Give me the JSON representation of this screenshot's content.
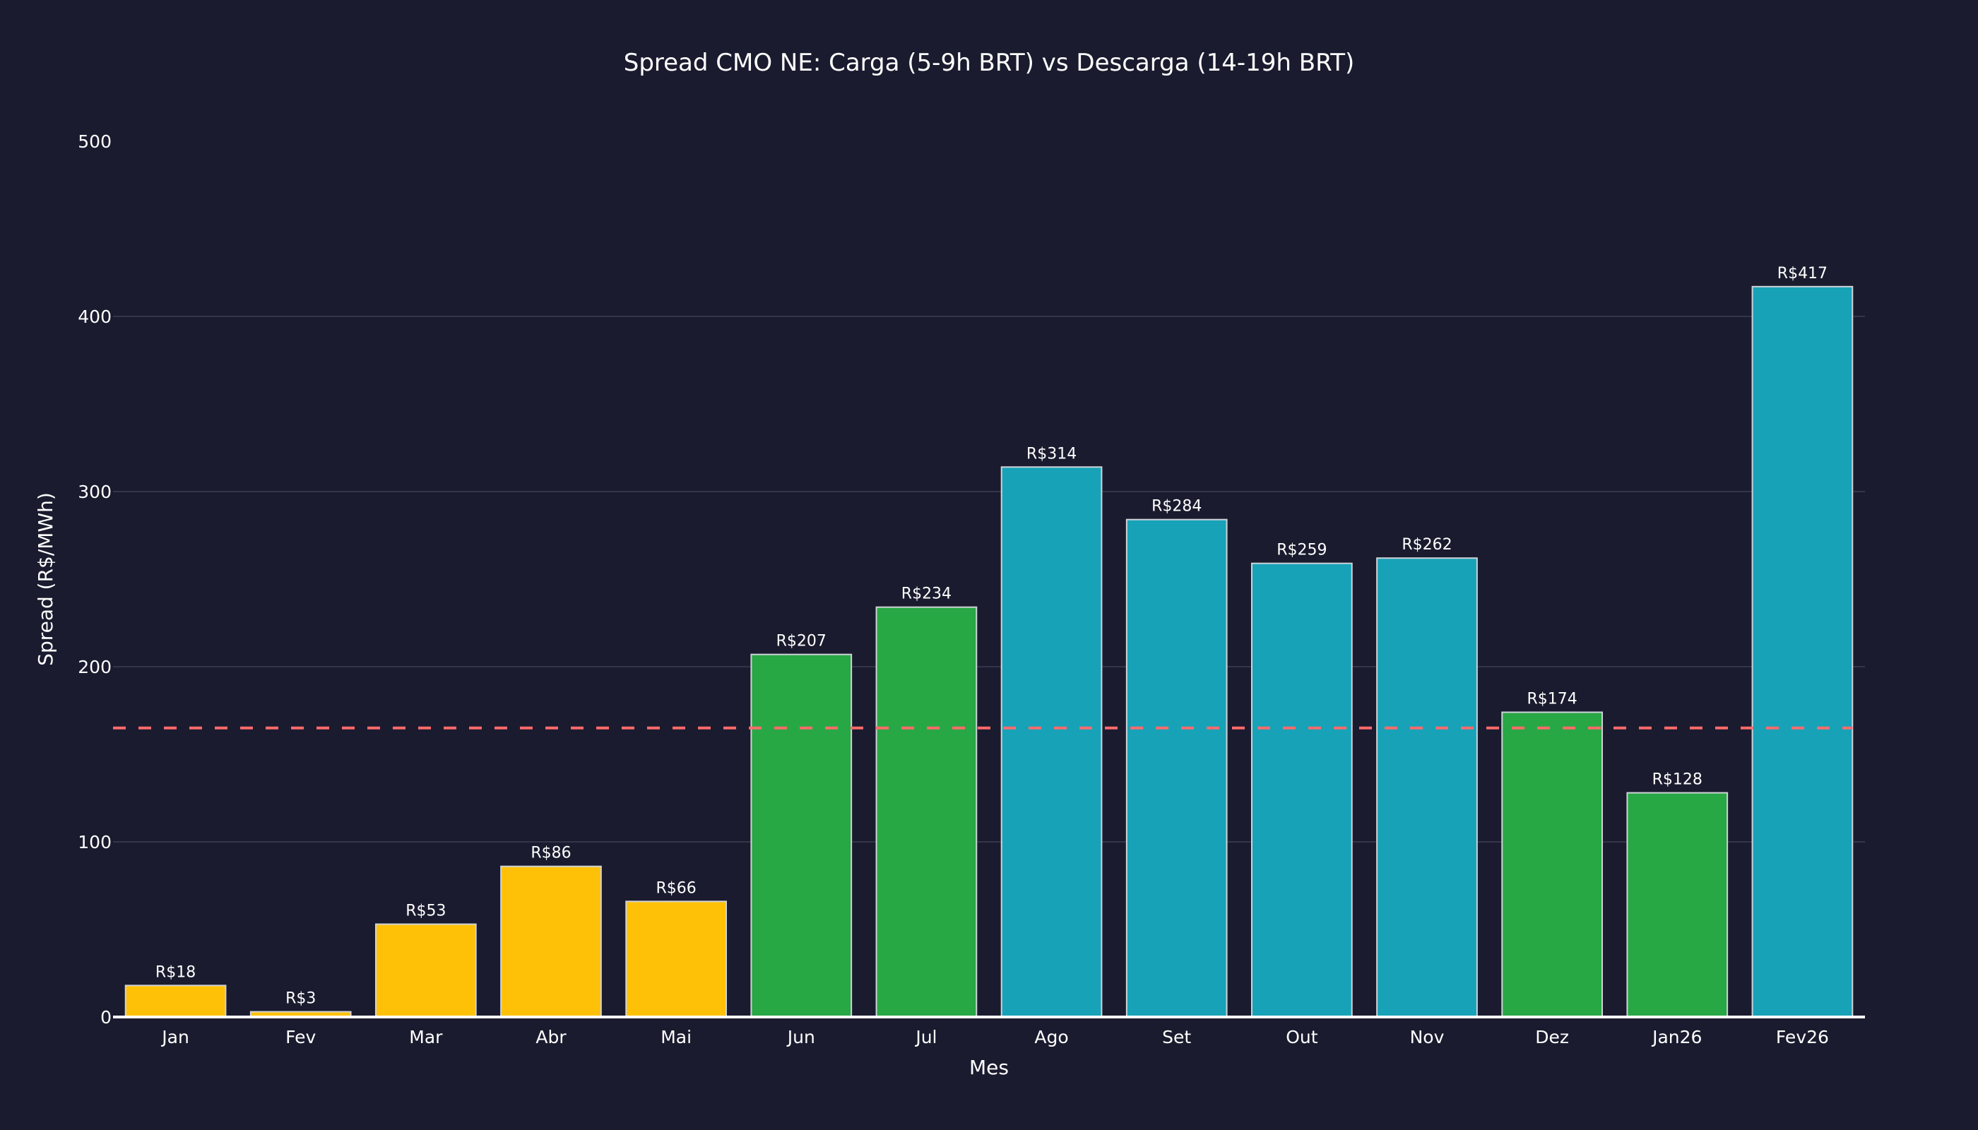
{
  "chart_data": {
    "type": "bar",
    "title": "Spread CMO NE: Carga (5-9h BRT) vs Descarga (14-19h BRT)",
    "xlabel": "Mes",
    "ylabel": "Spread (R$/MWh)",
    "ylim": [
      0,
      500
    ],
    "yticks": [
      0,
      100,
      200,
      300,
      400,
      500
    ],
    "grid": true,
    "legend": "none",
    "categories": [
      "Jan",
      "Fev",
      "Mar",
      "Abr",
      "Mai",
      "Jun",
      "Jul",
      "Ago",
      "Set",
      "Out",
      "Nov",
      "Dez",
      "Jan26",
      "Fev26"
    ],
    "values": [
      18,
      3,
      53,
      86,
      66,
      207,
      234,
      314,
      284,
      259,
      262,
      174,
      128,
      417
    ],
    "data_labels": [
      "R$18",
      "R$3",
      "R$53",
      "R$86",
      "R$66",
      "R$207",
      "R$234",
      "R$314",
      "R$284",
      "R$259",
      "R$262",
      "R$174",
      "R$128",
      "R$417"
    ],
    "bar_colors": [
      "#ffc107",
      "#ffc107",
      "#ffc107",
      "#ffc107",
      "#ffc107",
      "#28a745",
      "#28a745",
      "#17a2b8",
      "#17a2b8",
      "#17a2b8",
      "#17a2b8",
      "#28a745",
      "#28a745",
      "#17a2b8"
    ],
    "reference_line": {
      "value": 165,
      "style": "dashed",
      "color": "#ff6b6b"
    }
  },
  "colors": {
    "background": "#1a1b2e",
    "text": "#ffffff",
    "grid": "#34354a",
    "baseline": "#ffffff"
  }
}
